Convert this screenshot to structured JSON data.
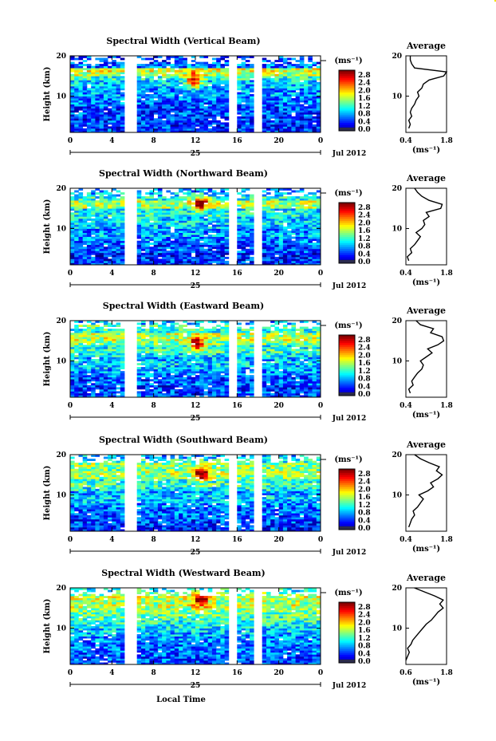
{
  "figure": {
    "xlabel": "Local Time",
    "date_label": "Jul 2012",
    "day_label": "25",
    "ylabel": "Height (km)",
    "unit_label": "(ms⁻¹)",
    "avg_unit_label": "(ms⁻¹)",
    "avg_title": "Average"
  },
  "chart_data": [
    {
      "type": "heatmap",
      "title": "Spectral Width (Vertical Beam)",
      "xlabel": "Local Time",
      "ylabel": "Height (km)",
      "x_ticks": [
        "0",
        "4",
        "8",
        "12",
        "16",
        "20",
        "0"
      ],
      "y_ticks": [
        "20",
        "10"
      ],
      "xlim": [
        0,
        24
      ],
      "ylim": [
        1,
        20
      ],
      "colorbar": {
        "label": "(ms⁻¹)",
        "ticks": [
          "2.8",
          "2.4",
          "2.0",
          "1.6",
          "1.2",
          "0.8",
          "0.4",
          "0.0"
        ],
        "range": [
          0,
          3.0
        ]
      },
      "data_gaps_hours": [
        [
          5.6,
          6.1
        ],
        [
          15.4,
          15.9
        ],
        [
          17.9,
          18.3
        ]
      ],
      "hotspot": {
        "time": 11.7,
        "height": 13.5
      },
      "average": {
        "title": "Average",
        "xlim": [
          0.4,
          1.8
        ],
        "x_ticks": [
          "0.4",
          "1.8"
        ],
        "y_ticks": [
          "20",
          "10"
        ],
        "height": [
          2,
          3,
          4,
          5,
          6,
          7,
          8,
          9,
          10,
          11,
          12,
          13,
          14,
          15,
          16,
          17,
          18,
          19,
          20
        ],
        "value": [
          0.5,
          0.55,
          0.5,
          0.6,
          0.55,
          0.6,
          0.7,
          0.75,
          0.85,
          0.8,
          0.95,
          1.0,
          1.2,
          1.7,
          1.8,
          0.7,
          0.6,
          0.55,
          0.55
        ]
      }
    },
    {
      "type": "heatmap",
      "title": "Spectral Width (Northward Beam)",
      "xlabel": "Local Time",
      "ylabel": "Height (km)",
      "x_ticks": [
        "0",
        "4",
        "8",
        "12",
        "16",
        "20",
        "0"
      ],
      "y_ticks": [
        "20",
        "10"
      ],
      "xlim": [
        0,
        24
      ],
      "ylim": [
        1,
        20
      ],
      "colorbar": {
        "label": "(ms⁻¹)",
        "ticks": [
          "2.8",
          "2.4",
          "2.0",
          "1.6",
          "1.2",
          "0.8",
          "0.4",
          "0.0"
        ],
        "range": [
          0,
          3.0
        ]
      },
      "data_gaps_hours": [
        [
          5.6,
          6.1
        ],
        [
          15.4,
          15.9
        ],
        [
          17.9,
          18.3
        ]
      ],
      "hotspot": {
        "time": 12.3,
        "height": 16
      },
      "average": {
        "title": "Average",
        "xlim": [
          0.4,
          1.8
        ],
        "x_ticks": [
          "0.4",
          "1.8"
        ],
        "y_ticks": [
          "20",
          "10"
        ],
        "height": [
          2,
          3,
          4,
          5,
          6,
          7,
          8,
          9,
          10,
          11,
          12,
          13,
          14,
          15,
          16,
          17,
          18,
          19,
          20
        ],
        "value": [
          0.5,
          0.45,
          0.6,
          0.55,
          0.7,
          0.8,
          0.9,
          0.75,
          0.95,
          1.05,
          1.0,
          1.2,
          1.1,
          1.6,
          1.65,
          1.2,
          0.95,
          0.8,
          0.7
        ]
      }
    },
    {
      "type": "heatmap",
      "title": "Spectral Width (Eastward Beam)",
      "xlabel": "Local Time",
      "ylabel": "Height (km)",
      "x_ticks": [
        "0",
        "4",
        "8",
        "12",
        "16",
        "20",
        "0"
      ],
      "y_ticks": [
        "20",
        "10"
      ],
      "xlim": [
        0,
        24
      ],
      "ylim": [
        1,
        20
      ],
      "colorbar": {
        "label": "(ms⁻¹)",
        "ticks": [
          "2.8",
          "2.4",
          "2.0",
          "1.6",
          "1.2",
          "0.8",
          "0.4",
          "0.0"
        ],
        "range": [
          0,
          3.0
        ]
      },
      "data_gaps_hours": [
        [
          5.6,
          6.1
        ],
        [
          15.4,
          15.9
        ],
        [
          17.9,
          18.3
        ]
      ],
      "hotspot": {
        "time": 12.0,
        "height": 14
      },
      "average": {
        "title": "Average",
        "xlim": [
          0.4,
          1.8
        ],
        "x_ticks": [
          "0.4",
          "1.8"
        ],
        "y_ticks": [
          "20",
          "10"
        ],
        "height": [
          2,
          3,
          4,
          5,
          6,
          7,
          8,
          9,
          10,
          11,
          12,
          13,
          14,
          15,
          16,
          17,
          18,
          19,
          20
        ],
        "value": [
          0.55,
          0.5,
          0.65,
          0.6,
          0.7,
          0.8,
          0.95,
          1.0,
          0.9,
          1.1,
          1.3,
          1.15,
          1.5,
          1.7,
          1.65,
          1.25,
          1.35,
          0.9,
          0.75
        ]
      }
    },
    {
      "type": "heatmap",
      "title": "Spectral Width (Southward Beam)",
      "xlabel": "Local Time",
      "ylabel": "Height (km)",
      "x_ticks": [
        "0",
        "4",
        "8",
        "12",
        "16",
        "20",
        "0"
      ],
      "y_ticks": [
        "20",
        "10"
      ],
      "xlim": [
        0,
        24
      ],
      "ylim": [
        1,
        20
      ],
      "colorbar": {
        "label": "(ms⁻¹)",
        "ticks": [
          "2.8",
          "2.4",
          "2.0",
          "1.6",
          "1.2",
          "0.8",
          "0.4",
          "0.0"
        ],
        "range": [
          0,
          3.0
        ]
      },
      "data_gaps_hours": [
        [
          5.6,
          6.1
        ],
        [
          15.4,
          15.9
        ],
        [
          17.9,
          18.3
        ]
      ],
      "hotspot": {
        "time": 12.4,
        "height": 15
      },
      "average": {
        "title": "Average",
        "xlim": [
          0.4,
          1.8
        ],
        "x_ticks": [
          "0.4",
          "1.8"
        ],
        "y_ticks": [
          "20",
          "10"
        ],
        "height": [
          2,
          3,
          4,
          5,
          6,
          7,
          8,
          9,
          10,
          11,
          12,
          13,
          14,
          15,
          16,
          17,
          18,
          19,
          20
        ],
        "value": [
          0.5,
          0.55,
          0.6,
          0.7,
          0.65,
          0.8,
          0.9,
          1.0,
          0.85,
          1.15,
          1.35,
          1.25,
          1.5,
          1.65,
          1.45,
          1.55,
          1.2,
          0.9,
          0.7
        ]
      }
    },
    {
      "type": "heatmap",
      "title": "Spectral Width (Westward Beam)",
      "xlabel": "Local Time",
      "ylabel": "Height (km)",
      "x_ticks": [
        "0",
        "4",
        "8",
        "12",
        "16",
        "20",
        "0"
      ],
      "y_ticks": [
        "20",
        "10"
      ],
      "xlim": [
        0,
        24
      ],
      "ylim": [
        1,
        20
      ],
      "colorbar": {
        "label": "(ms⁻¹)",
        "ticks": [
          "2.8",
          "2.4",
          "2.0",
          "1.6",
          "1.2",
          "0.8",
          "0.4",
          "0.0"
        ],
        "range": [
          0,
          3.0
        ]
      },
      "data_gaps_hours": [
        [
          5.6,
          6.1
        ],
        [
          15.4,
          15.9
        ],
        [
          17.9,
          18.3
        ]
      ],
      "hotspot": {
        "time": 12.3,
        "height": 17
      },
      "average": {
        "title": "Average",
        "xlim": [
          0.6,
          1.8
        ],
        "x_ticks": [
          "0.6",
          "1.8"
        ],
        "y_ticks": [
          "20",
          "10"
        ],
        "height": [
          2,
          3,
          4,
          5,
          6,
          7,
          8,
          9,
          10,
          11,
          12,
          13,
          14,
          15,
          16,
          17,
          18,
          19,
          20
        ],
        "value": [
          0.6,
          0.65,
          0.7,
          0.65,
          0.75,
          0.8,
          0.9,
          1.0,
          1.1,
          1.2,
          1.35,
          1.45,
          1.55,
          1.7,
          1.6,
          1.7,
          1.45,
          1.15,
          0.85
        ]
      }
    }
  ]
}
